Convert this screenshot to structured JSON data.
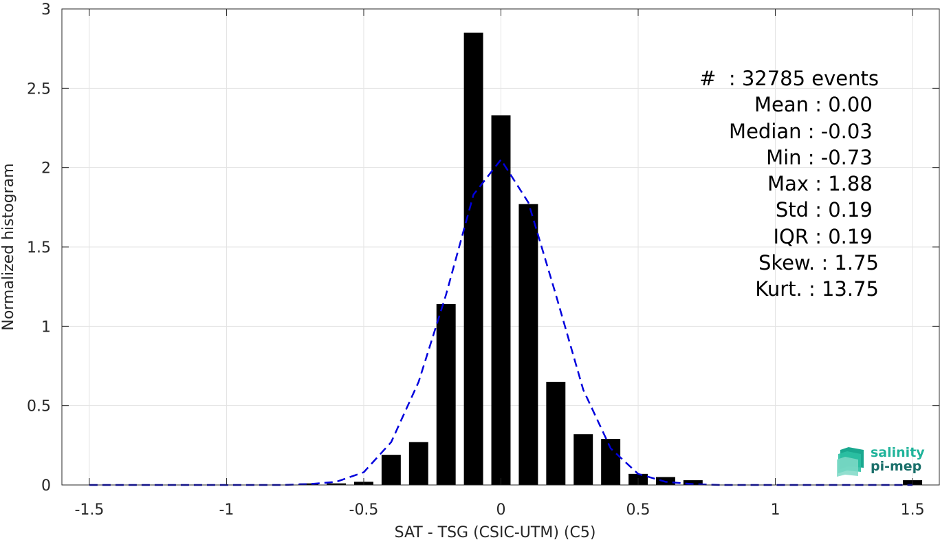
{
  "chart_data": {
    "type": "bar",
    "xlabel": "SAT - TSG (CSIC-UTM) (C5)",
    "ylabel": "Normalized histogram",
    "xlim": [
      -1.6,
      1.6
    ],
    "ylim": [
      0,
      3
    ],
    "grid": true,
    "x_ticks": [
      -1.5,
      -1,
      -0.5,
      0,
      0.5,
      1,
      1.5
    ],
    "x_tick_labels": [
      "-1.5",
      "-1",
      "-0.5",
      "0",
      "0.5",
      "1",
      "1.5"
    ],
    "y_ticks": [
      0,
      0.5,
      1,
      1.5,
      2,
      2.5,
      3
    ],
    "y_tick_labels": [
      "0",
      "0.5",
      "1",
      "1.5",
      "2",
      "2.5",
      "3"
    ],
    "bar_width": 0.07,
    "bars": {
      "x": [
        -0.7,
        -0.6,
        -0.5,
        -0.4,
        -0.3,
        -0.2,
        -0.1,
        0.0,
        0.1,
        0.2,
        0.3,
        0.4,
        0.5,
        0.6,
        0.7,
        1.5
      ],
      "values": [
        0.01,
        0.01,
        0.02,
        0.19,
        0.27,
        1.14,
        2.85,
        2.33,
        1.77,
        0.65,
        0.32,
        0.29,
        0.07,
        0.05,
        0.03,
        0.03
      ],
      "color": "#000000"
    },
    "fit_line": {
      "style": "dashed",
      "color": "#0000dd",
      "x": [
        -1.5,
        -1.4,
        -1.3,
        -1.2,
        -1.1,
        -1.0,
        -0.9,
        -0.8,
        -0.7,
        -0.6,
        -0.5,
        -0.4,
        -0.3,
        -0.2,
        -0.1,
        0.0,
        0.1,
        0.2,
        0.3,
        0.4,
        0.5,
        0.6,
        0.7,
        0.8,
        0.9,
        1.0,
        1.1,
        1.2,
        1.3,
        1.4,
        1.5
      ],
      "y": [
        0,
        0,
        0,
        0,
        0,
        0,
        0,
        0,
        0.005,
        0.02,
        0.08,
        0.27,
        0.65,
        1.2,
        1.83,
        2.05,
        1.78,
        1.2,
        0.6,
        0.23,
        0.07,
        0.02,
        0.005,
        0,
        0,
        0,
        0,
        0,
        0,
        0,
        0
      ]
    }
  },
  "stats": [
    "#  : 32785 events",
    "Mean : 0.00 ",
    "Median : -0.03 ",
    "Min : -0.73 ",
    "Max : 1.88 ",
    "Std : 0.19 ",
    "IQR : 0.19 ",
    "Skew. : 1.75",
    "Kurt. : 13.75"
  ],
  "logo": {
    "line1": "salinity",
    "line2": "pi-mep",
    "colors": [
      "#1fb39a",
      "#1a6f6a"
    ]
  }
}
